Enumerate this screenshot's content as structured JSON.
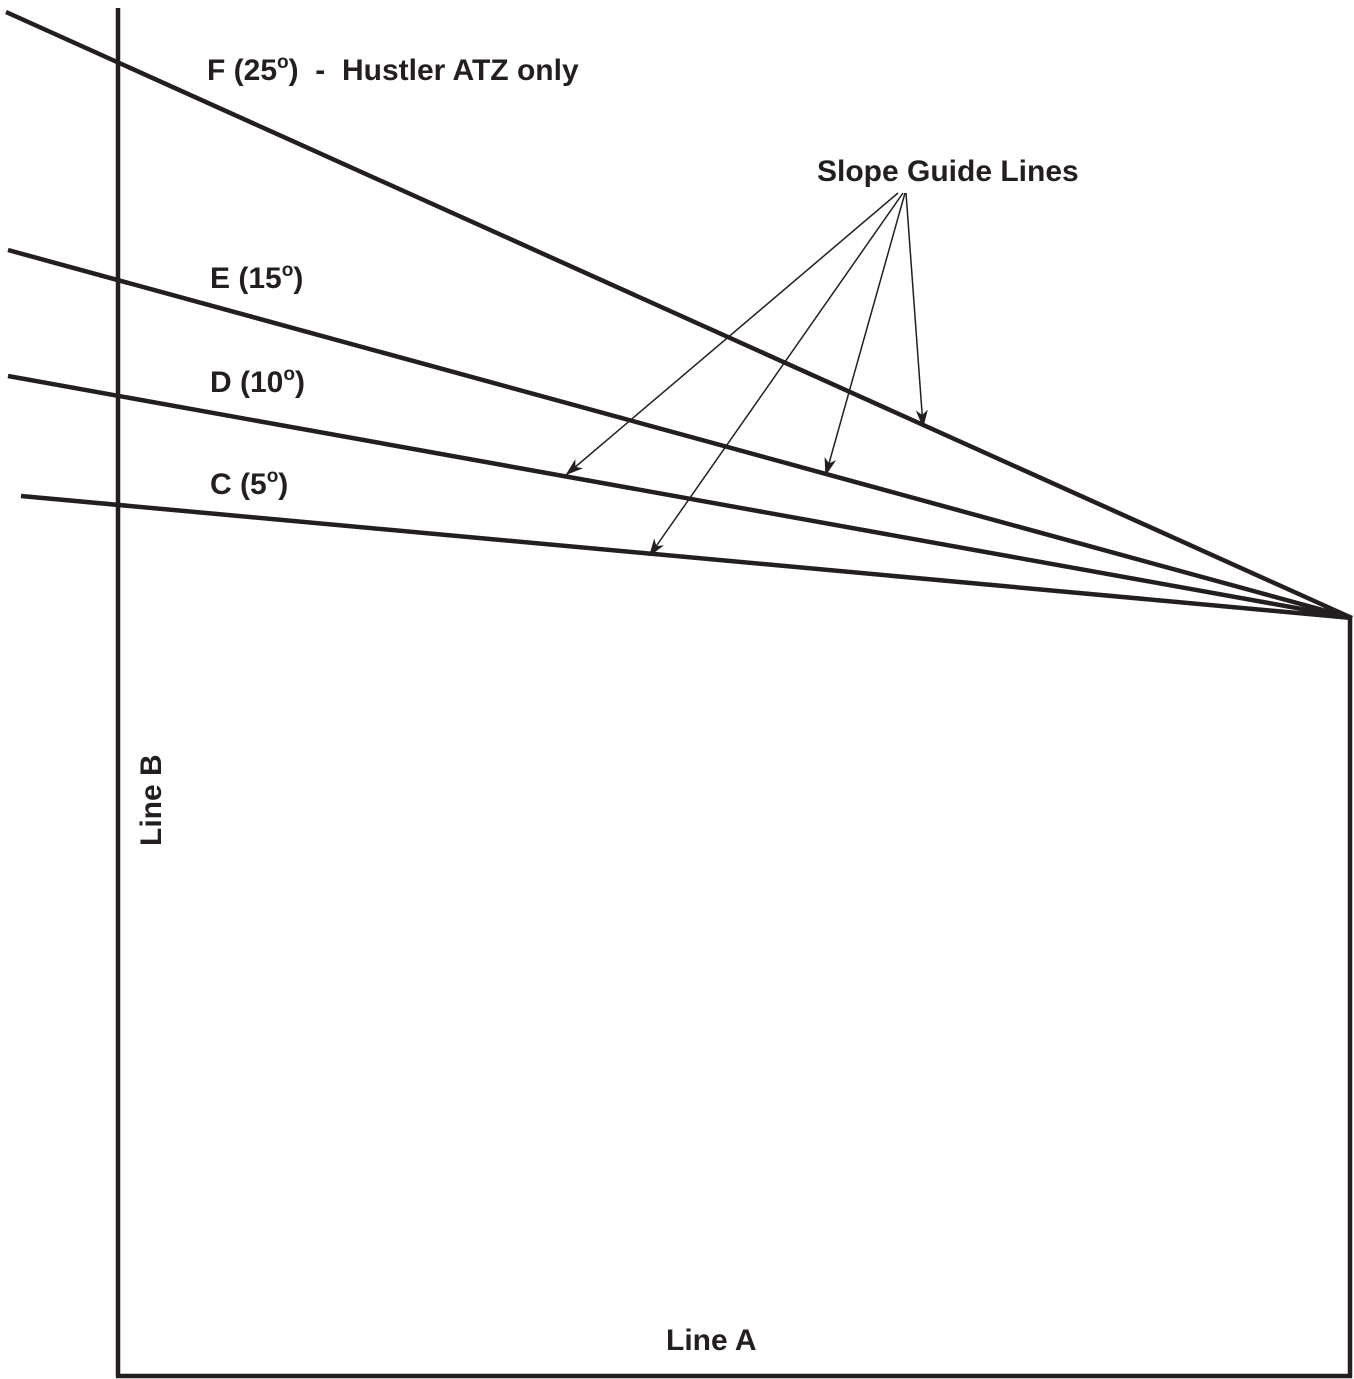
{
  "colors": {
    "ink": "#231f20",
    "background": "#ffffff"
  },
  "labels": {
    "line_f": {
      "text": "F (25",
      "degree": "o",
      "suffix": ")  -  Hustler ATZ only"
    },
    "line_e": {
      "text": "E (15",
      "degree": "o",
      "suffix": ")"
    },
    "line_d": {
      "text": "D (10",
      "degree": "o",
      "suffix": ")"
    },
    "line_c": {
      "text": "C (5",
      "degree": "o",
      "suffix": ")"
    },
    "callout": "Slope Guide Lines",
    "line_b": "Line B",
    "line_a": "Line A"
  },
  "slope_lines": [
    {
      "id": "F",
      "angle_deg": 25
    },
    {
      "id": "E",
      "angle_deg": 15
    },
    {
      "id": "D",
      "angle_deg": 10
    },
    {
      "id": "C",
      "angle_deg": 5
    }
  ]
}
